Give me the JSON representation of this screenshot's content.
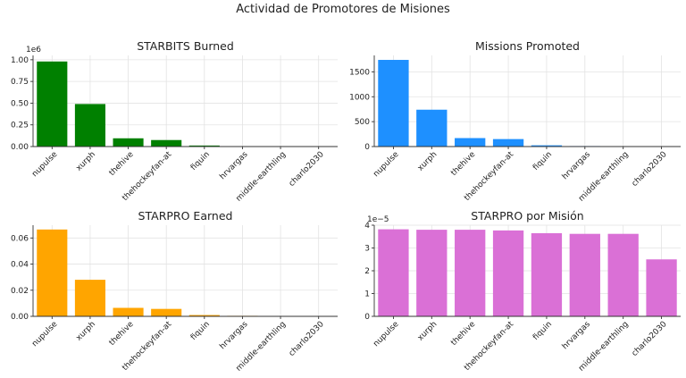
{
  "suptitle": "Actividad de Promotores de Misiones",
  "chart_data": [
    {
      "type": "bar",
      "title": "STARBITS Burned",
      "categories": [
        "nupulse",
        "xurph",
        "thehive",
        "thehockeyfan-at",
        "fiquin",
        "hrvargas",
        "middle-earthling",
        "charlo2030"
      ],
      "values": [
        980000,
        490000,
        95000,
        75000,
        12000,
        3000,
        2000,
        1000
      ],
      "color": "#008000",
      "ylim": [
        0,
        1050000
      ],
      "yticks": [
        0,
        0.25,
        0.5,
        0.75,
        1.0
      ],
      "ytick_labels": [
        "0.00",
        "0.25",
        "0.50",
        "0.75",
        "1.00"
      ],
      "scale_label": "1e6",
      "scale": 1000000,
      "grid": true
    },
    {
      "type": "bar",
      "title": "Missions Promoted",
      "categories": [
        "nupulse",
        "xurph",
        "thehive",
        "thehockeyfan-at",
        "fiquin",
        "hrvargas",
        "middle-earthling",
        "charlo2030"
      ],
      "values": [
        1740,
        740,
        170,
        150,
        25,
        10,
        8,
        5
      ],
      "color": "#1e90ff",
      "ylim": [
        0,
        1830
      ],
      "yticks": [
        0,
        500,
        1000,
        1500
      ],
      "ytick_labels": [
        "0",
        "500",
        "1000",
        "1500"
      ],
      "scale_label": "",
      "scale": 1,
      "grid": true
    },
    {
      "type": "bar",
      "title": "STARPRO Earned",
      "categories": [
        "nupulse",
        "xurph",
        "thehive",
        "thehockeyfan-at",
        "fiquin",
        "hrvargas",
        "middle-earthling",
        "charlo2030"
      ],
      "values": [
        0.0665,
        0.028,
        0.0065,
        0.0057,
        0.001,
        0.0004,
        0.0003,
        0.0001
      ],
      "color": "#ffa500",
      "ylim": [
        0,
        0.0698
      ],
      "yticks": [
        0,
        0.02,
        0.04,
        0.06
      ],
      "ytick_labels": [
        "0.00",
        "0.02",
        "0.04",
        "0.06"
      ],
      "scale_label": "",
      "scale": 1,
      "grid": true
    },
    {
      "type": "bar",
      "title": "STARPRO por Misión",
      "categories": [
        "nupulse",
        "xurph",
        "thehive",
        "thehockeyfan-at",
        "fiquin",
        "hrvargas",
        "middle-earthling",
        "charlo2030"
      ],
      "values": [
        3.82e-05,
        3.8e-05,
        3.8e-05,
        3.77e-05,
        3.65e-05,
        3.62e-05,
        3.62e-05,
        2.5e-05
      ],
      "color": "#da70d6",
      "ylim": [
        0,
        4e-05
      ],
      "yticks": [
        0,
        1,
        2,
        3,
        4
      ],
      "ytick_labels": [
        "0",
        "1",
        "2",
        "3",
        "4"
      ],
      "scale_label": "1e−5",
      "scale": 1e-05,
      "grid": true
    }
  ]
}
